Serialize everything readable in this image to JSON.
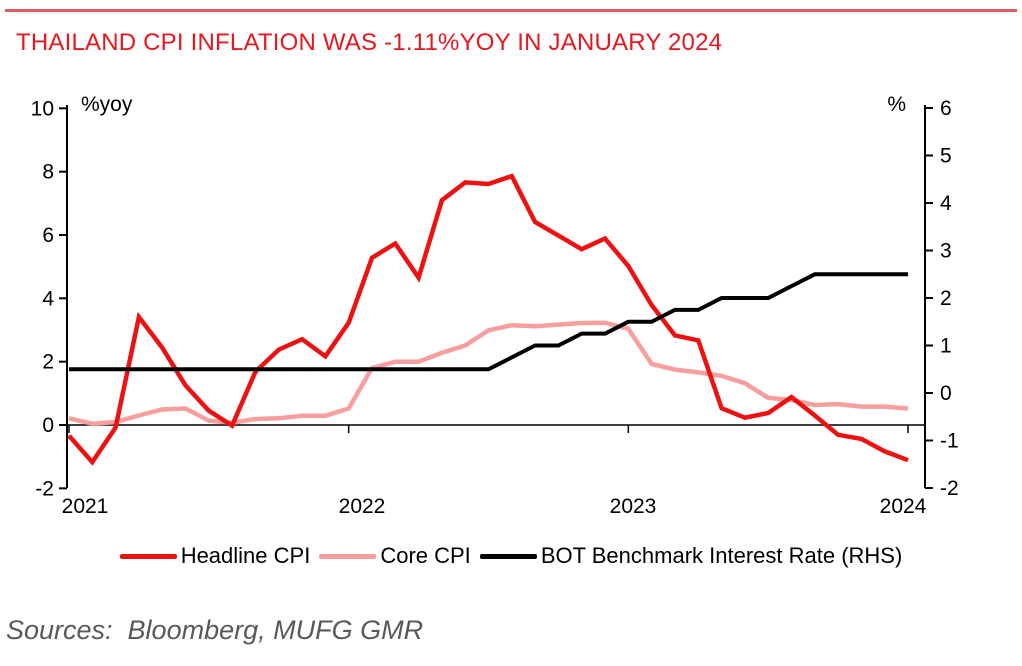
{
  "header": {
    "title": "THAILAND CPI INFLATION WAS -1.11%YOY IN JANUARY 2024"
  },
  "footer": {
    "sources": "Sources:  Bloomberg, MUFG GMR"
  },
  "colors": {
    "title": "#E8171F",
    "top_rule": "#DE5B5B",
    "sources_text": "#595959",
    "axis": "#000000"
  },
  "chart_data": {
    "type": "line",
    "title": "THAILAND CPI INFLATION WAS -1.11%YOY IN JANUARY 2024",
    "x_unit": "month",
    "x_start": "2021-01",
    "x_end": "2024-01",
    "xticks": [
      "2021",
      "2022",
      "2023",
      "2024"
    ],
    "left_axis": {
      "label": "%yoy",
      "range": [
        -2,
        10
      ],
      "ticks": [
        10,
        8,
        6,
        4,
        2,
        0,
        -2
      ]
    },
    "right_axis": {
      "label": "%",
      "range": [
        -2,
        6
      ],
      "ticks": [
        6,
        5,
        4,
        3,
        2,
        1,
        0,
        -1,
        -2
      ]
    },
    "grid": false,
    "legend_position": "bottom",
    "series": [
      {
        "name": "Headline CPI",
        "axis": "left",
        "color": "#EE1111",
        "values": [
          -0.34,
          -1.17,
          -0.08,
          3.41,
          2.44,
          1.25,
          0.45,
          -0.02,
          1.68,
          2.38,
          2.71,
          2.17,
          3.23,
          5.28,
          5.73,
          4.65,
          7.1,
          7.66,
          7.61,
          7.86,
          6.41,
          5.98,
          5.55,
          5.89,
          5.02,
          3.79,
          2.83,
          2.67,
          0.53,
          0.23,
          0.38,
          0.88,
          0.3,
          -0.31,
          -0.44,
          -0.83,
          -1.11
        ]
      },
      {
        "name": "Core CPI",
        "axis": "left",
        "color": "#F79E9E",
        "values": [
          0.21,
          0.04,
          0.09,
          0.3,
          0.49,
          0.52,
          0.14,
          0.07,
          0.19,
          0.21,
          0.29,
          0.29,
          0.52,
          1.8,
          2.0,
          2.0,
          2.28,
          2.51,
          2.99,
          3.15,
          3.12,
          3.17,
          3.22,
          3.23,
          3.04,
          1.93,
          1.75,
          1.66,
          1.55,
          1.32,
          0.86,
          0.79,
          0.63,
          0.66,
          0.58,
          0.58,
          0.52
        ]
      },
      {
        "name": "BOT Benchmark Interest Rate (RHS)",
        "axis": "right",
        "color": "#000000",
        "values": [
          0.5,
          0.5,
          0.5,
          0.5,
          0.5,
          0.5,
          0.5,
          0.5,
          0.5,
          0.5,
          0.5,
          0.5,
          0.5,
          0.5,
          0.5,
          0.5,
          0.5,
          0.5,
          0.5,
          0.75,
          1.0,
          1.0,
          1.25,
          1.25,
          1.5,
          1.5,
          1.75,
          1.75,
          2.0,
          2.0,
          2.0,
          2.25,
          2.5,
          2.5,
          2.5,
          2.5,
          2.5
        ]
      }
    ]
  }
}
